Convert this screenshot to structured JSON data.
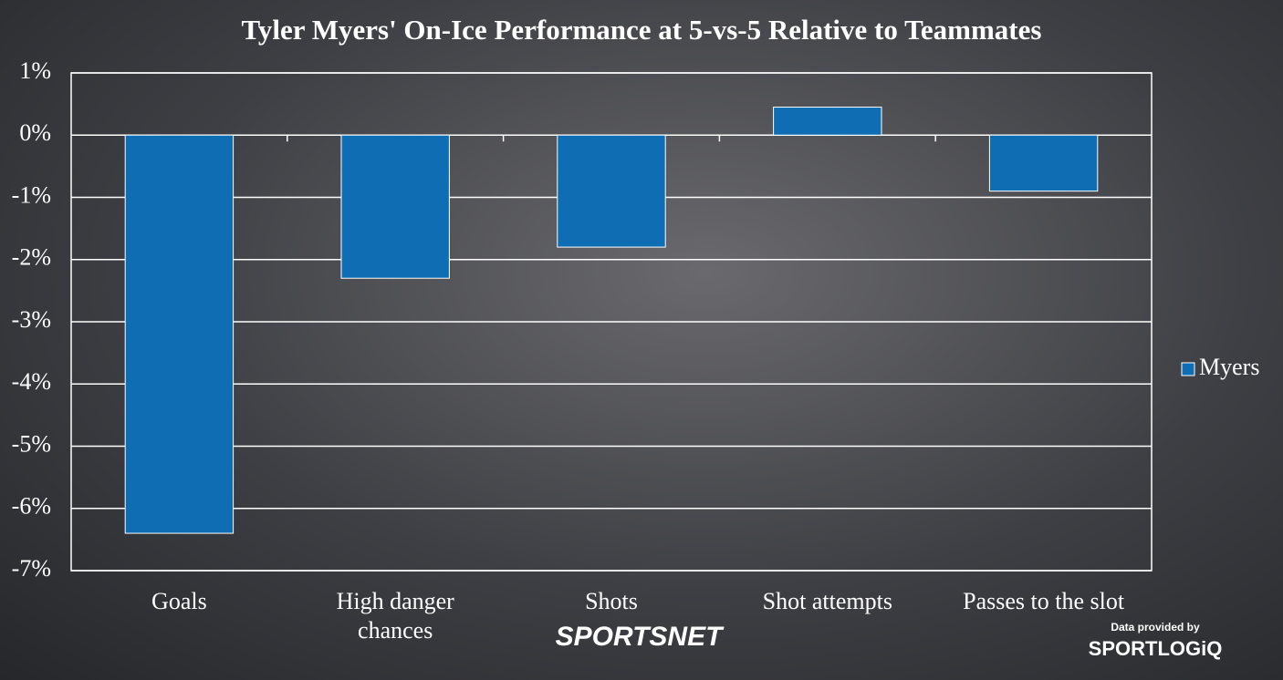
{
  "chart_data": {
    "type": "bar",
    "title": "Tyler Myers' On-Ice Performance at 5-vs-5 Relative to Teammates",
    "categories": [
      "Goals",
      "High danger chances",
      "Shots",
      "Shot attempts",
      "Passes to the slot"
    ],
    "series": [
      {
        "name": "Myers",
        "color": "#0f6db3",
        "values": [
          -6.4,
          -2.3,
          -1.8,
          0.45,
          -0.9
        ]
      }
    ],
    "ylim": [
      -7,
      1
    ],
    "yticks": [
      {
        "value": -7,
        "label": "-7%"
      },
      {
        "value": -6,
        "label": "-6%"
      },
      {
        "value": -5,
        "label": "-5%"
      },
      {
        "value": -4,
        "label": "-4%"
      },
      {
        "value": -3,
        "label": "-3%"
      },
      {
        "value": -2,
        "label": "-2%"
      },
      {
        "value": -1,
        "label": "-1%"
      },
      {
        "value": 0,
        "label": "0%"
      },
      {
        "value": 1,
        "label": "1%"
      }
    ],
    "grid": true,
    "legend": "right"
  },
  "branding": {
    "network": "SPORTSNET",
    "credit": "Data provided by",
    "provider": "SPORTLOGiQ"
  }
}
